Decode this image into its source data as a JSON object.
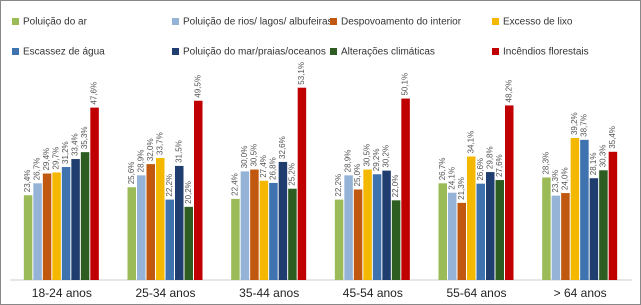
{
  "chart_data": {
    "type": "bar",
    "categories": [
      "18-24 anos",
      "25-34 anos",
      "35-44 anos",
      "45-54 anos",
      "55-64 anos",
      "> 64 anos"
    ],
    "series": [
      {
        "name": "Poluição do ar",
        "color": "#9bbb59",
        "values": [
          23.4,
          25.6,
          22.4,
          22.2,
          26.7,
          28.3
        ],
        "value_labels": [
          "23,4%",
          "25,6%",
          "22,4%",
          "22,2%",
          "26,7%",
          "28,3%"
        ]
      },
      {
        "name": "Poluição de rios/ lagos/ albufeiras",
        "color": "#95b3d7",
        "values": [
          26.7,
          28.9,
          30.0,
          28.9,
          24.1,
          23.3
        ],
        "value_labels": [
          "26,7%",
          "28,9%",
          "30,0%",
          "28,9%",
          "24,1%",
          "23,3%"
        ]
      },
      {
        "name": "Despovoamento do interior",
        "color": "#c0580f",
        "values": [
          29.4,
          32.0,
          30.5,
          25.0,
          21.3,
          24.0
        ],
        "value_labels": [
          "29,4%",
          "32,0%",
          "30,5%",
          "25,0%",
          "21,3%",
          "24,0%"
        ]
      },
      {
        "name": "Excesso de lixo",
        "color": "#f5b800",
        "values": [
          29.7,
          33.7,
          27.4,
          30.5,
          34.1,
          39.2
        ],
        "value_labels": [
          "29,7%",
          "33,7%",
          "27,4%",
          "30,5%",
          "34,1%",
          "39,2%"
        ]
      },
      {
        "name": "Escassez de água",
        "color": "#3f73b0",
        "values": [
          31.2,
          22.2,
          26.8,
          29.2,
          26.6,
          38.7
        ],
        "value_labels": [
          "31,2%",
          "22,2%",
          "26,8%",
          "29,2%",
          "26,6%",
          "38,7%"
        ]
      },
      {
        "name": "Poluição do mar/praias/oceanos",
        "color": "#1f3d6e",
        "values": [
          33.4,
          31.5,
          32.6,
          30.2,
          29.8,
          28.1
        ],
        "value_labels": [
          "33,4%",
          "31,5%",
          "32,6%",
          "30,2%",
          "29,8%",
          "28,1%"
        ]
      },
      {
        "name": "Alterações climáticas",
        "color": "#2e5d22",
        "values": [
          35.3,
          20.2,
          25.2,
          22.0,
          27.6,
          30.3
        ],
        "value_labels": [
          "35,3%",
          "20,2%",
          "25,2%",
          "22,0%",
          "27,6%",
          "30,3%"
        ]
      },
      {
        "name": "Incêndios florestais",
        "color": "#c00000",
        "values": [
          47.6,
          49.5,
          53.1,
          50.1,
          48.2,
          35.4
        ],
        "value_labels": [
          "47,6%",
          "49,5%",
          "53,1%",
          "50,1%",
          "48,2%",
          "35,4%"
        ]
      }
    ]
  }
}
